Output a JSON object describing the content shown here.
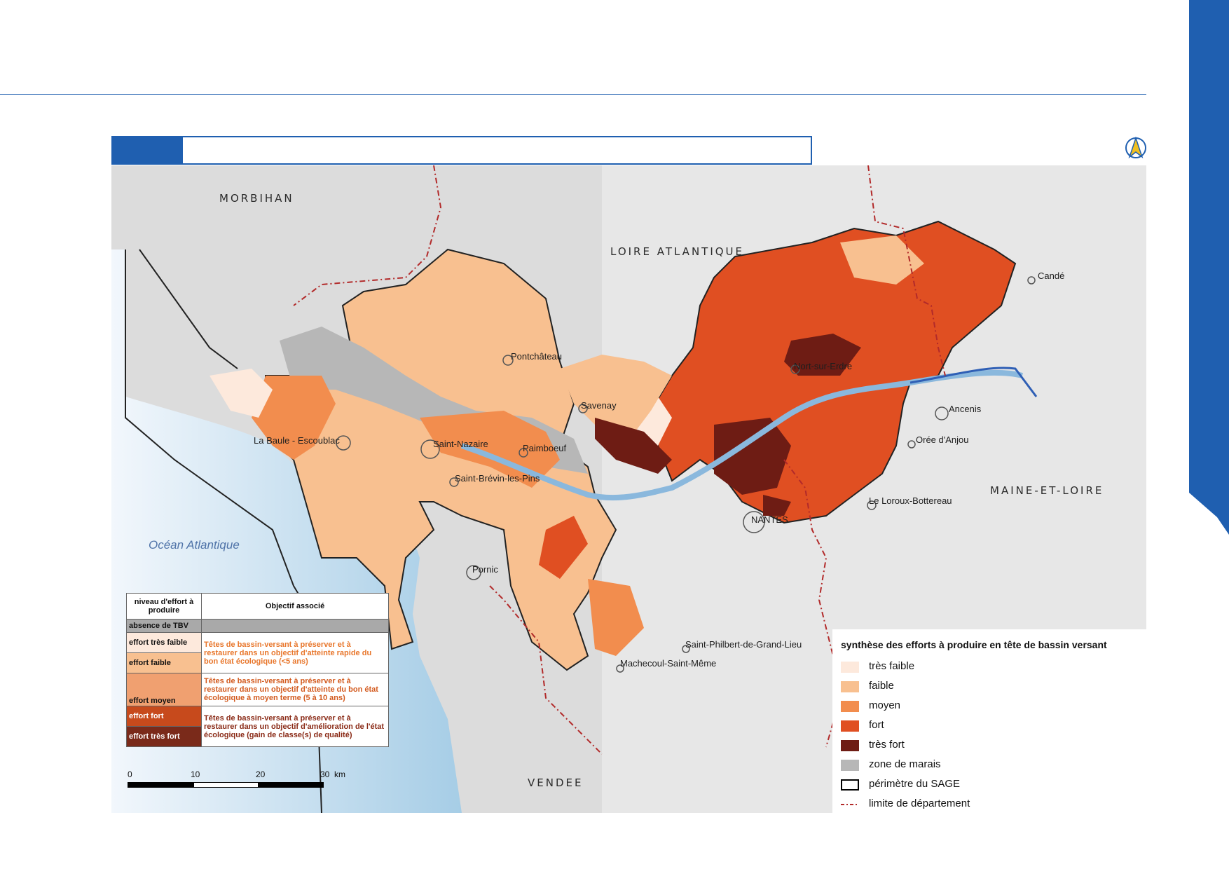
{
  "page": {
    "header_rule_color": "#1f5fb0",
    "side_tab_color": "#1f5fb0",
    "title_text": "",
    "logo_icon": "compass-north-arrow-icon"
  },
  "map": {
    "departments": [
      "MORBIHAN",
      "LOIRE ATLANTIQUE",
      "MAINE-ET-LOIRE",
      "VENDEE"
    ],
    "ocean_label": "Océan Atlantique",
    "towns": [
      "Pontchâteau",
      "Savenay",
      "Nort-sur-Erdre",
      "Candé",
      "Ancenis",
      "Orée d'Anjou",
      "La Baule - Escoublac",
      "Saint-Nazaire",
      "Paimboeuf",
      "Saint-Brévin-les-Pins",
      "NANTES",
      "Le Loroux-Bottereau",
      "Pornic",
      "Saint-Philbert-de-Grand-Lieu",
      "Machecoul-Saint-Même"
    ]
  },
  "legend": {
    "title": "synthèse des efforts à produire en tête de bassin versant",
    "items": [
      {
        "label": "très faible",
        "color": "#fde9dc",
        "kind": "fill"
      },
      {
        "label": "faible",
        "color": "#f8c090",
        "kind": "fill"
      },
      {
        "label": "moyen",
        "color": "#f28d4e",
        "kind": "fill"
      },
      {
        "label": "fort",
        "color": "#e04f22",
        "kind": "fill"
      },
      {
        "label": "très fort",
        "color": "#6e1c14",
        "kind": "fill"
      },
      {
        "label": "zone de marais",
        "color": "#b7b7b7",
        "kind": "fill"
      },
      {
        "label": "périmètre du SAGE",
        "color": "#000000",
        "kind": "outline"
      },
      {
        "label": "limite de département",
        "color": "#b22a2a",
        "kind": "dash"
      }
    ]
  },
  "objectives_table": {
    "header_level": "niveau d'effort à produire",
    "header_objective": "Objectif associé",
    "rows": [
      {
        "level": "absence de TBV",
        "color": "#a9a9a9",
        "objective": "",
        "objective_color": "#333333"
      },
      {
        "level": "effort très faible",
        "color": "#fde9dc",
        "objective": "Têtes de bassin-versant à préserver et à restaurer dans un objectif d'atteinte rapide du bon état écologique (<5 ans)",
        "objective_color": "#e8762b"
      },
      {
        "level": "effort  faible",
        "color": "#f8c090",
        "objective": "",
        "objective_color": "#e8762b"
      },
      {
        "level": "effort moyen",
        "color": "#f0a070",
        "objective": "Têtes de bassin-versant à préserver et à restaurer dans un objectif d'atteinte du bon état écologique à moyen terme (5 à 10 ans)",
        "objective_color": "#d35a1e"
      },
      {
        "level": "effort fort",
        "color": "#c74a1c",
        "objective": "Têtes de bassin-versant à préserver et à restaurer dans un objectif d'amélioration de l'état écologique (gain de classe(s) de qualité)",
        "objective_color": "#8a2a16"
      },
      {
        "level": "effort très fort",
        "color": "#7a2a1a",
        "objective": "",
        "objective_color": "#8a2a16"
      }
    ]
  },
  "scalebar": {
    "ticks": [
      "0",
      "10",
      "20",
      "30"
    ],
    "unit": "km"
  }
}
